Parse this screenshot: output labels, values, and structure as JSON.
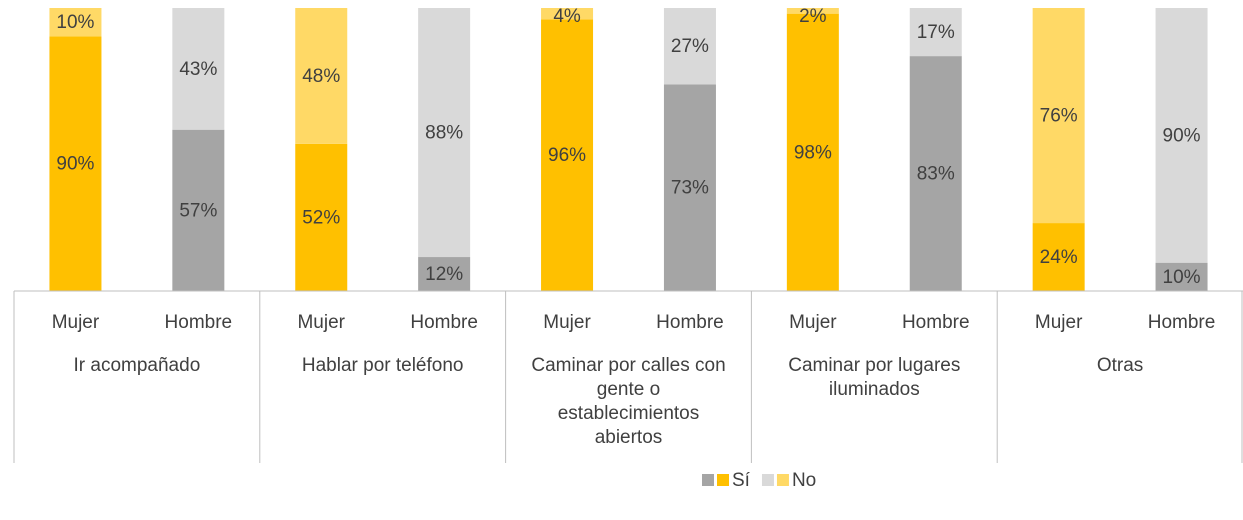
{
  "chart_data": {
    "type": "bar",
    "stacked": true,
    "groups": [
      "Ir acompañado",
      "Hablar por teléfono",
      "Caminar por calles con gente o establecimientos abiertos",
      "Caminar por lugares iluminados",
      "Otras"
    ],
    "categories": [
      "Mujer",
      "Hombre",
      "Mujer",
      "Hombre",
      "Mujer",
      "Hombre",
      "Mujer",
      "Hombre",
      "Mujer",
      "Hombre"
    ],
    "series": [
      {
        "name": "Sí",
        "colors": [
          "#ffc000",
          "#a5a5a5",
          "#ffc000",
          "#a5a5a5",
          "#ffc000",
          "#a5a5a5",
          "#ffc000",
          "#a5a5a5",
          "#ffc000",
          "#a5a5a5"
        ],
        "values": [
          90,
          57,
          52,
          12,
          96,
          73,
          98,
          83,
          24,
          10
        ],
        "value_labels": [
          "90%",
          "57%",
          "52%",
          "12%",
          "96%",
          "73%",
          "98%",
          "83%",
          "24%",
          "10%"
        ]
      },
      {
        "name": "No",
        "colors": [
          "#ffd966",
          "#d9d9d9",
          "#ffd966",
          "#d9d9d9",
          "#ffd966",
          "#d9d9d9",
          "#ffd966",
          "#d9d9d9",
          "#ffd966",
          "#d9d9d9"
        ],
        "values": [
          10,
          43,
          48,
          88,
          4,
          27,
          2,
          17,
          76,
          90
        ],
        "value_labels": [
          "10%",
          "43%",
          "48%",
          "88%",
          "4%",
          "27%",
          "2%",
          "17%",
          "76%",
          "90%"
        ]
      }
    ],
    "ylim": [
      0,
      100
    ]
  }
}
